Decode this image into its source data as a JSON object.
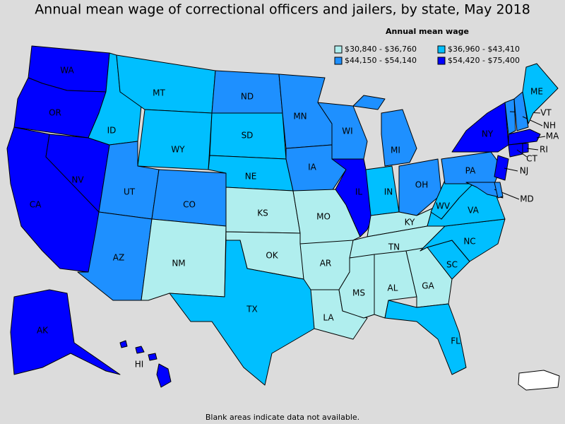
{
  "title": "Annual mean wage of correctional officers and jailers, by state, May 2018",
  "legend": {
    "title": "Annual mean wage",
    "items": [
      {
        "label": "$30,840 - $36,760",
        "color": "#b0eeee"
      },
      {
        "label": "$36,960 - $43,410",
        "color": "#00bfff"
      },
      {
        "label": "$44,150 - $54,140",
        "color": "#1e90ff"
      },
      {
        "label": "$54,420 - $75,400",
        "color": "#0000ff"
      }
    ]
  },
  "states": [
    {
      "label": "WA",
      "class": 3
    },
    {
      "label": "OR",
      "class": 3
    },
    {
      "label": "CA",
      "class": 3
    },
    {
      "label": "NV",
      "class": 3
    },
    {
      "label": "ID",
      "class": 1
    },
    {
      "label": "MT",
      "class": 1
    },
    {
      "label": "WY",
      "class": 1
    },
    {
      "label": "UT",
      "class": 2
    },
    {
      "label": "AZ",
      "class": 2
    },
    {
      "label": "CO",
      "class": 2
    },
    {
      "label": "NM",
      "class": 0
    },
    {
      "label": "ND",
      "class": 2
    },
    {
      "label": "SD",
      "class": 1
    },
    {
      "label": "NE",
      "class": 1
    },
    {
      "label": "KS",
      "class": 0
    },
    {
      "label": "OK",
      "class": 0
    },
    {
      "label": "TX",
      "class": 1
    },
    {
      "label": "MN",
      "class": 2
    },
    {
      "label": "IA",
      "class": 2
    },
    {
      "label": "MO",
      "class": 0
    },
    {
      "label": "AR",
      "class": 0
    },
    {
      "label": "LA",
      "class": 0
    },
    {
      "label": "WI",
      "class": 2
    },
    {
      "label": "IL",
      "class": 3
    },
    {
      "label": "MI",
      "class": 2
    },
    {
      "label": "IN",
      "class": 1
    },
    {
      "label": "OH",
      "class": 2
    },
    {
      "label": "KY",
      "class": 0
    },
    {
      "label": "TN",
      "class": 0
    },
    {
      "label": "MS",
      "class": 0
    },
    {
      "label": "AL",
      "class": 0
    },
    {
      "label": "GA",
      "class": 0
    },
    {
      "label": "FL",
      "class": 1
    },
    {
      "label": "SC",
      "class": 1
    },
    {
      "label": "NC",
      "class": 1
    },
    {
      "label": "VA",
      "class": 1
    },
    {
      "label": "WV",
      "class": 1
    },
    {
      "label": "PA",
      "class": 2
    },
    {
      "label": "NY",
      "class": 3
    },
    {
      "label": "NJ",
      "class": 3
    },
    {
      "label": "MD",
      "class": 2
    },
    {
      "class": 2
    },
    {
      "label": "VT",
      "class": 2
    },
    {
      "label": "NH",
      "class": 2
    },
    {
      "label": "ME",
      "class": 1
    },
    {
      "label": "MA",
      "class": 3
    },
    {
      "label": "CT",
      "class": 3
    },
    {
      "label": "RI",
      "class": 3
    },
    {
      "label": "AK",
      "class": 3
    },
    {
      "label": "HI",
      "class": 3
    }
  ],
  "footnote": "Blank areas indicate data not available."
}
